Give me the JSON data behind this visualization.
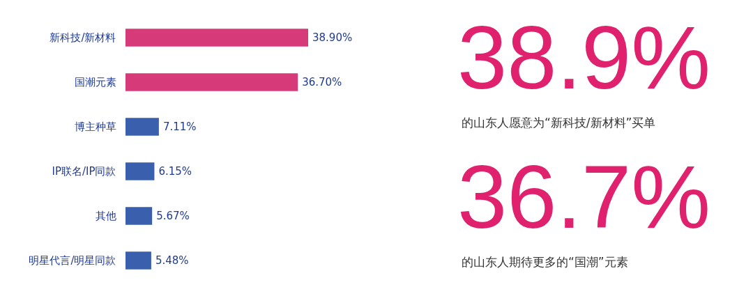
{
  "chart_data": {
    "type": "bar",
    "orientation": "horizontal",
    "categories": [
      "新科技/新材料",
      "国潮元素",
      "博主种草",
      "IP联名/IP同款",
      "其他",
      "明星代言/明星同款"
    ],
    "values": [
      38.9,
      36.7,
      7.11,
      6.15,
      5.67,
      5.48
    ],
    "colors": [
      "#d63a78",
      "#d63a78",
      "#3a5fad",
      "#3a5fad",
      "#3a5fad",
      "#3a5fad"
    ],
    "value_labels": [
      "38.90%",
      "36.70%",
      "7.11%",
      "6.15%",
      "5.67%",
      "5.48%"
    ],
    "annotations": [
      "38.9%",
      "的山东人愿意为“新科技/新材料”买单",
      "36.7%",
      "的山东人期待更多的“国潮”元素"
    ],
    "grid": false
  }
}
